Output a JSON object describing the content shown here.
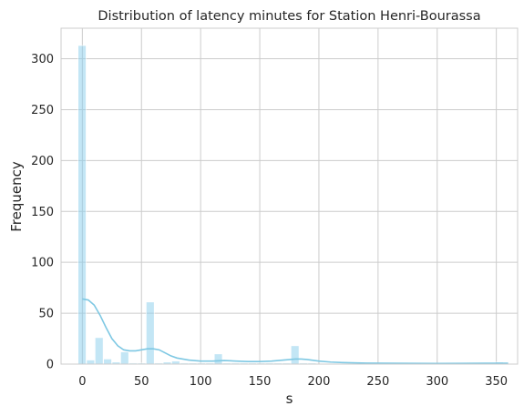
{
  "chart_data": {
    "type": "bar",
    "title": "Distribution of latency minutes for Station Henri-Bourassa",
    "xlabel": "s",
    "ylabel": "Frequency",
    "xlim": [
      -18,
      368
    ],
    "ylim": [
      0,
      330
    ],
    "grid": true,
    "bar_color": "#87ceeb",
    "kde_color": "#7ec8e3",
    "bin_width": 7.2,
    "bins": [
      {
        "x": 0,
        "value": 313
      },
      {
        "x": 7.2,
        "value": 4
      },
      {
        "x": 14.4,
        "value": 26
      },
      {
        "x": 21.6,
        "value": 5
      },
      {
        "x": 28.8,
        "value": 2
      },
      {
        "x": 36,
        "value": 12
      },
      {
        "x": 43.2,
        "value": 1
      },
      {
        "x": 50.4,
        "value": 1
      },
      {
        "x": 57.6,
        "value": 61
      },
      {
        "x": 64.8,
        "value": 1
      },
      {
        "x": 72,
        "value": 2
      },
      {
        "x": 79.2,
        "value": 3
      },
      {
        "x": 86.4,
        "value": 1
      },
      {
        "x": 93.6,
        "value": 1
      },
      {
        "x": 100.8,
        "value": 1
      },
      {
        "x": 108,
        "value": 1
      },
      {
        "x": 115.2,
        "value": 10
      },
      {
        "x": 122.4,
        "value": 1
      },
      {
        "x": 129.6,
        "value": 1
      },
      {
        "x": 136.8,
        "value": 1
      },
      {
        "x": 144,
        "value": 1
      },
      {
        "x": 151.2,
        "value": 1
      },
      {
        "x": 158.4,
        "value": 1
      },
      {
        "x": 165.6,
        "value": 1
      },
      {
        "x": 172.8,
        "value": 1
      },
      {
        "x": 180,
        "value": 18
      },
      {
        "x": 187.2,
        "value": 1
      },
      {
        "x": 194.4,
        "value": 1
      },
      {
        "x": 237.6,
        "value": 1
      },
      {
        "x": 352.8,
        "value": 2
      }
    ],
    "kde": {
      "x": [
        0,
        5,
        10,
        15,
        20,
        25,
        30,
        35,
        40,
        45,
        50,
        55,
        60,
        65,
        70,
        75,
        80,
        90,
        100,
        110,
        120,
        130,
        140,
        150,
        160,
        170,
        180,
        185,
        190,
        200,
        210,
        220,
        240,
        260,
        300,
        340,
        360
      ],
      "y": [
        64,
        63,
        58,
        48,
        36,
        25,
        18,
        14,
        13,
        13,
        14,
        15,
        15,
        14,
        11,
        8,
        6,
        4,
        3,
        3,
        3.5,
        3,
        2.5,
        2.5,
        3,
        4,
        5,
        5,
        4.5,
        3,
        2,
        1.5,
        1,
        0.8,
        0.6,
        0.8,
        0.8
      ]
    },
    "x_ticks": [
      0,
      50,
      100,
      150,
      200,
      250,
      300,
      350
    ],
    "y_ticks": [
      0,
      50,
      100,
      150,
      200,
      250,
      300
    ]
  }
}
